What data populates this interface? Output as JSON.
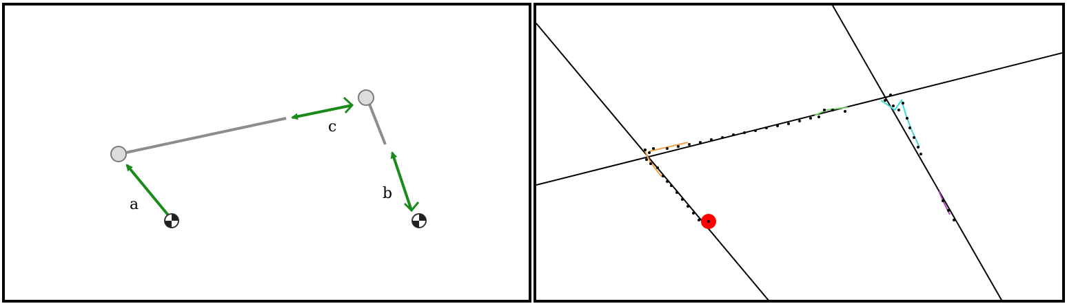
{
  "left_diagram": {
    "vectors": [
      {
        "label": "a"
      },
      {
        "label": "b"
      },
      {
        "label": "c"
      }
    ],
    "colors": {
      "arrow": "#1a8a1a",
      "link": "#8c8c8c",
      "joint_fill": "#dcdcdc",
      "joint_stroke": "#7a7a7a",
      "marker": "#000000"
    }
  },
  "right_diagram": {
    "colors": {
      "line": "#000000",
      "point": "#000000",
      "highlight": "#ff0000",
      "trace_orange": "#f4a24a",
      "trace_green": "#7ad36a",
      "trace_cyan": "#40d8d0",
      "trace_purple": "#b040c0"
    }
  }
}
